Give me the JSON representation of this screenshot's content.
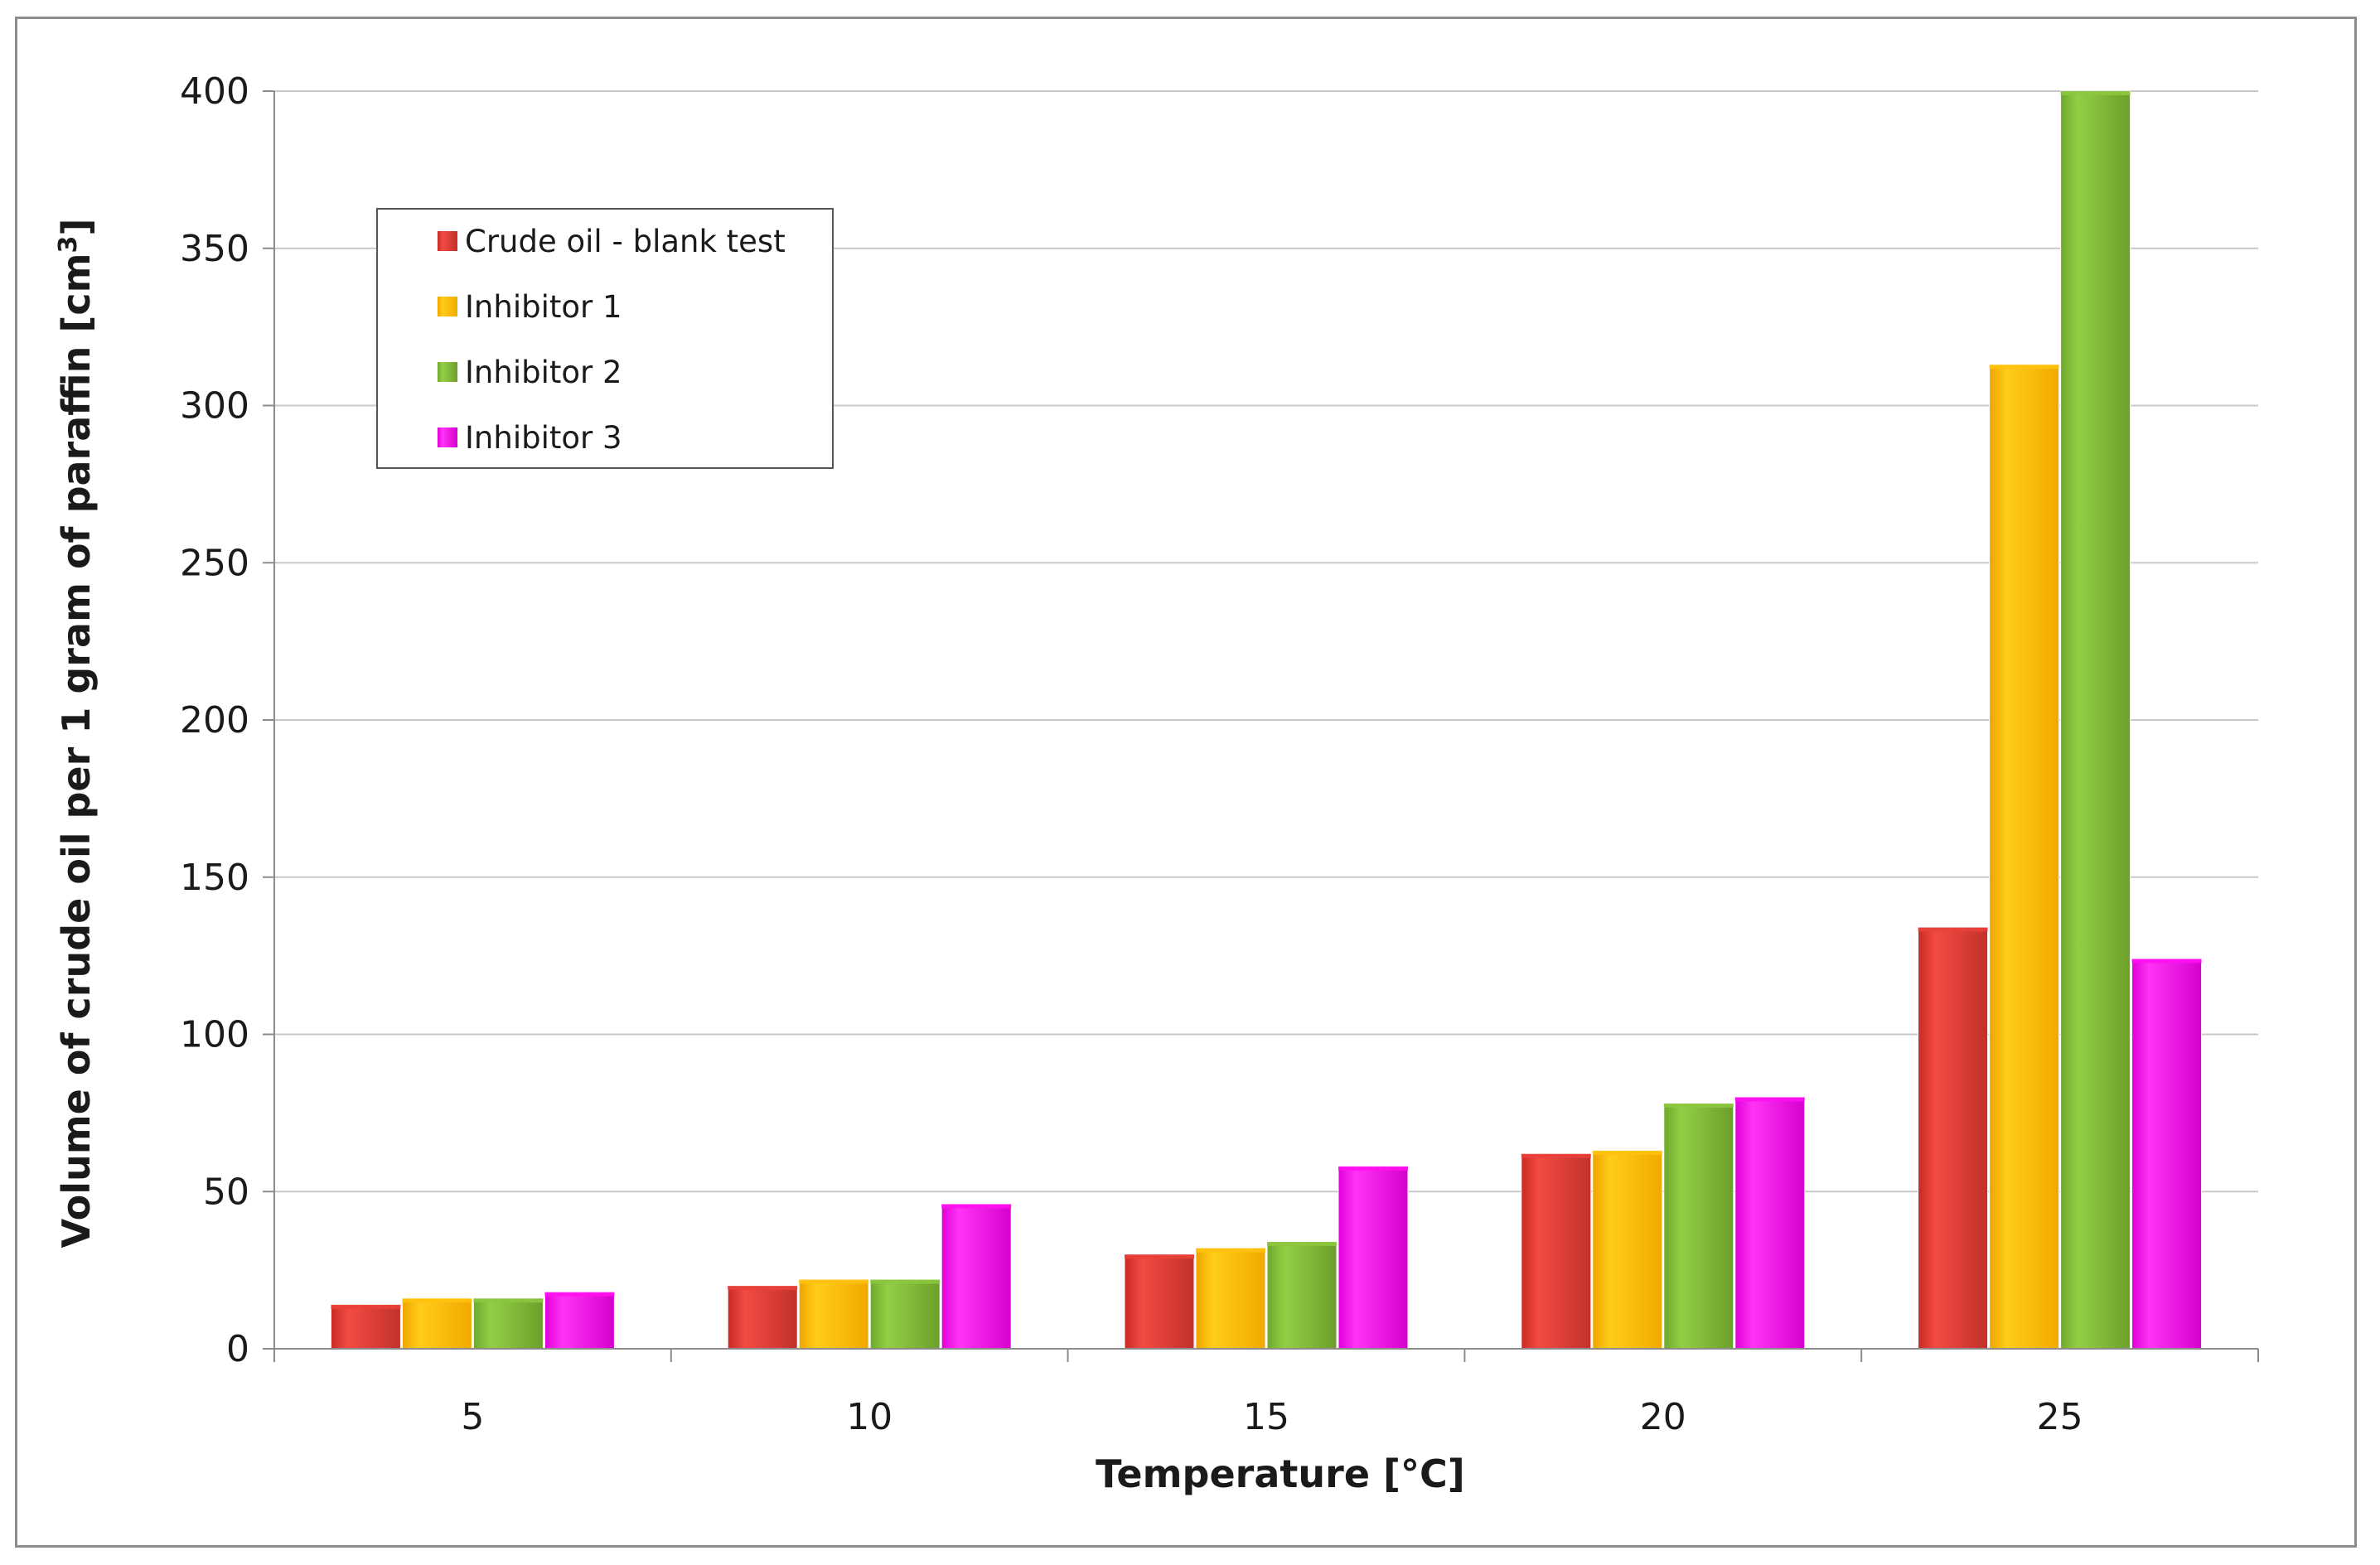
{
  "chart_data": {
    "type": "bar",
    "title": "",
    "xlabel": "Temperature [°C]",
    "ylabel": "Volume of crude oil per 1 gram of paraffin  [cm",
    "ylabel_superscript": "3",
    "ylabel_suffix": "]",
    "categories": [
      "5",
      "10",
      "15",
      "20",
      "25"
    ],
    "ylim": [
      0,
      400
    ],
    "yticks": [
      "0",
      "50",
      "100",
      "150",
      "200",
      "250",
      "300",
      "350",
      "400"
    ],
    "grid": true,
    "legend_position": "top-left",
    "series": [
      {
        "name": "Crude oil - blank test",
        "color": "#e8403a",
        "values": [
          14,
          20,
          30,
          62,
          134
        ]
      },
      {
        "name": "Inhibitor 1",
        "color": "#ffc20e",
        "values": [
          16,
          22,
          32,
          63,
          313
        ]
      },
      {
        "name": "Inhibitor 2",
        "color": "#8cc63f",
        "values": [
          16,
          22,
          34,
          78,
          400
        ]
      },
      {
        "name": "Inhibitor 3",
        "color": "#ff10f0",
        "values": [
          18,
          46,
          58,
          80,
          124
        ]
      }
    ]
  }
}
